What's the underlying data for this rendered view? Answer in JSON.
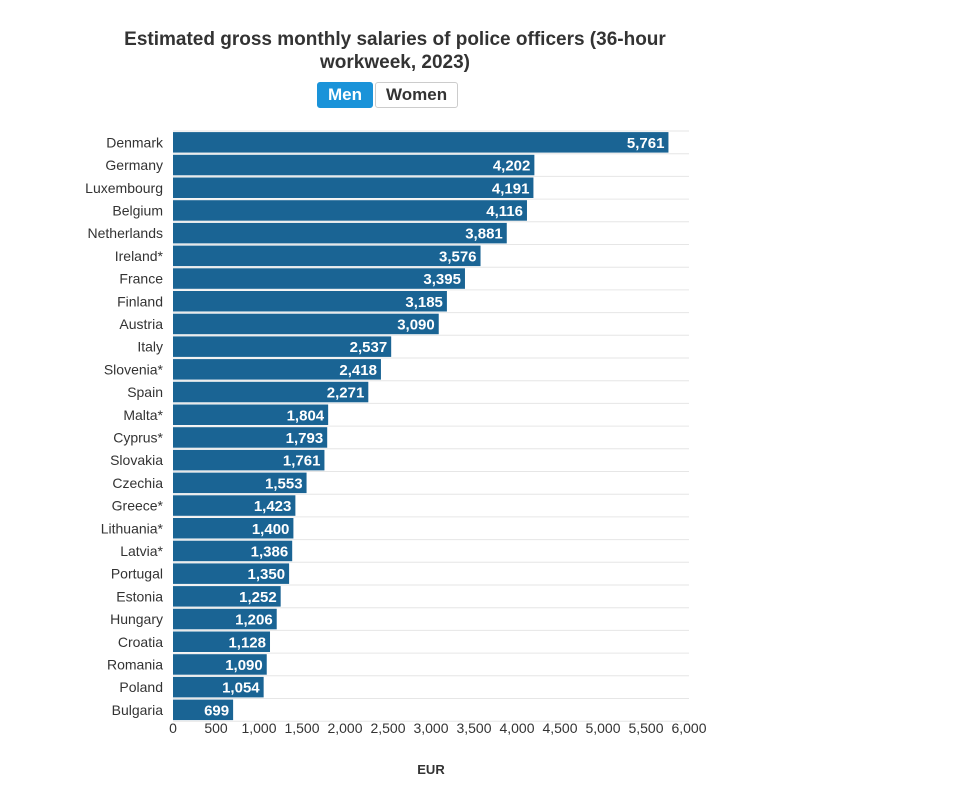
{
  "toggle": {
    "options": [
      "Men",
      "Women"
    ],
    "selected": "Men"
  },
  "chart_data": {
    "type": "bar",
    "orientation": "horizontal",
    "title": "Estimated gross monthly salaries of police officers (36-hour workweek, 2023)",
    "xlabel": "EUR",
    "ylabel": "",
    "xlim": [
      0,
      6000
    ],
    "xticks": [
      "0",
      "500",
      "1,000",
      "1,500",
      "2,000",
      "2,500",
      "3,000",
      "3,500",
      "4,000",
      "4,500",
      "5,000",
      "5,500",
      "6,000"
    ],
    "xtick_values": [
      0,
      500,
      1000,
      1500,
      2000,
      2500,
      3000,
      3500,
      4000,
      4500,
      5000,
      5500,
      6000
    ],
    "grid": true,
    "bar_color": "#1a6494",
    "categories": [
      "Denmark",
      "Germany",
      "Luxembourg",
      "Belgium",
      "Netherlands",
      "Ireland*",
      "France",
      "Finland",
      "Austria",
      "Italy",
      "Slovenia*",
      "Spain",
      "Malta*",
      "Cyprus*",
      "Slovakia",
      "Czechia",
      "Greece*",
      "Lithuania*",
      "Latvia*",
      "Portugal",
      "Estonia",
      "Hungary",
      "Croatia",
      "Romania",
      "Poland",
      "Bulgaria"
    ],
    "values": [
      5761,
      4202,
      4191,
      4116,
      3881,
      3576,
      3395,
      3185,
      3090,
      2537,
      2418,
      2271,
      1804,
      1793,
      1761,
      1553,
      1423,
      1400,
      1386,
      1350,
      1252,
      1206,
      1128,
      1090,
      1054,
      699
    ],
    "value_labels": [
      "5,761",
      "4,202",
      "4,191",
      "4,116",
      "3,881",
      "3,576",
      "3,395",
      "3,185",
      "3,090",
      "2,537",
      "2,418",
      "2,271",
      "1,804",
      "1,793",
      "1,761",
      "1,553",
      "1,423",
      "1,400",
      "1,386",
      "1,350",
      "1,252",
      "1,206",
      "1,128",
      "1,090",
      "1,054",
      "699"
    ]
  }
}
